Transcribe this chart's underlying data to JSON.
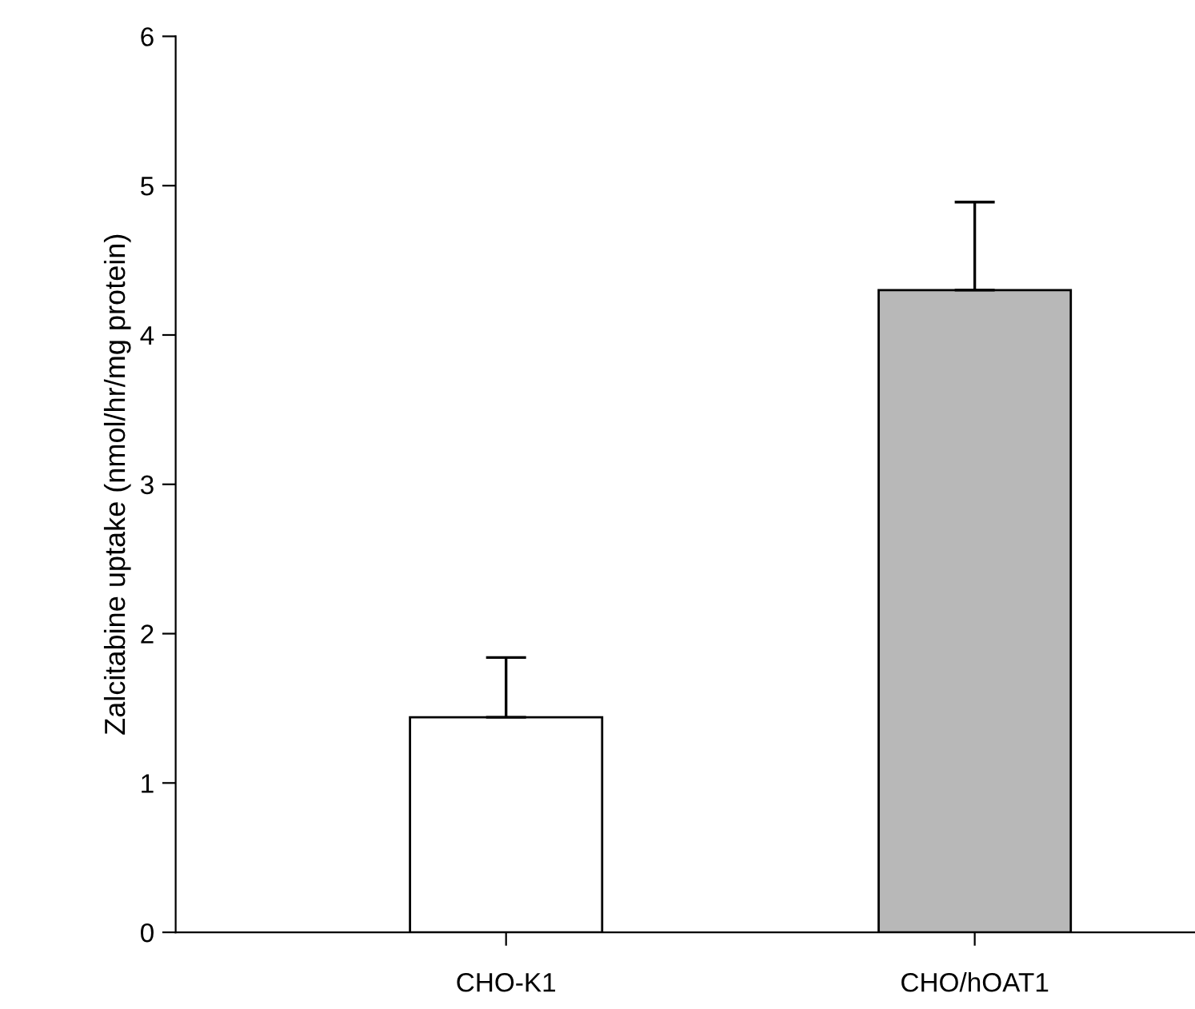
{
  "chart_data": {
    "type": "bar",
    "ylabel": "Zalcitabine uptake (nmol/hr/mg protein)",
    "categories": [
      "CHO-K1",
      "CHO/hOAT1"
    ],
    "values": [
      1.44,
      4.3
    ],
    "errors": [
      [
        1.44,
        1.84
      ],
      [
        4.3,
        4.89
      ]
    ],
    "colors": [
      "#ffffff",
      "#b8b8b8"
    ],
    "ylim": [
      0,
      6
    ],
    "yticks": [
      0,
      1,
      2,
      3,
      4,
      5,
      6
    ],
    "grid": false,
    "legend": false
  }
}
